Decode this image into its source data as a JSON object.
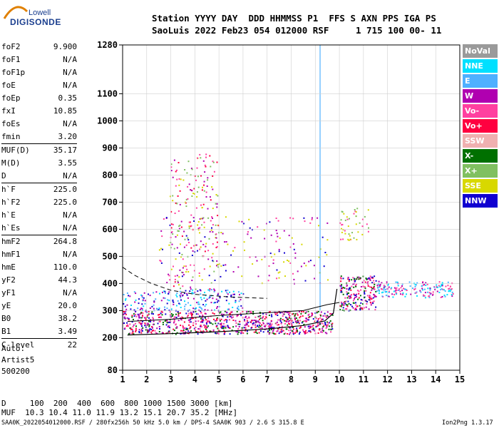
{
  "logo": {
    "line1": "Lowell",
    "line2": "DIGISONDE"
  },
  "header": {
    "line1": "Station YYYY DAY  DDD HHMMSS P1  FFS S AXN PPS IGA PS",
    "line2": "SaoLuis 2022 Feb23 054 012000 RSF     1 715 100 00- 11"
  },
  "params": [
    {
      "label": "foF2",
      "value": "9.900"
    },
    {
      "label": "foF1",
      "value": "N/A"
    },
    {
      "label": "foF1p",
      "value": "N/A"
    },
    {
      "label": "foE",
      "value": "N/A"
    },
    {
      "label": "foEp",
      "value": "0.35"
    },
    {
      "label": "fxI",
      "value": "10.85"
    },
    {
      "label": "foEs",
      "value": "N/A"
    },
    {
      "label": "fmin",
      "value": "3.20"
    },
    {
      "label": "MUF(D)",
      "value": "35.17"
    },
    {
      "label": "M(D)",
      "value": "3.55"
    },
    {
      "label": "D",
      "value": "N/A"
    },
    {
      "label": "h`F",
      "value": "225.0"
    },
    {
      "label": "h`F2",
      "value": "225.0"
    },
    {
      "label": "h`E",
      "value": "N/A"
    },
    {
      "label": "h`Es",
      "value": "N/A"
    },
    {
      "label": "hmF2",
      "value": "264.8"
    },
    {
      "label": "hmF1",
      "value": "N/A"
    },
    {
      "label": "hmE",
      "value": "110.0"
    },
    {
      "label": "yF2",
      "value": "44.3"
    },
    {
      "label": "yF1",
      "value": "N/A"
    },
    {
      "label": "yE",
      "value": "20.0"
    },
    {
      "label": "B0",
      "value": "38.2"
    },
    {
      "label": "B1",
      "value": "3.49"
    },
    {
      "label": "C-level",
      "value": "22"
    }
  ],
  "auto": {
    "line1": "Auto:",
    "line2": "Artist5",
    "line3": "500200"
  },
  "footer": {
    "d_row": "D     100  200  400  600  800 1000 1500 3000 [km]",
    "muf_row": "MUF  10.3 10.4 11.0 11.9 13.2 15.1 20.7 35.2 [MHz]",
    "file_info": "SAA0K_2022054012000.RSF / 280fx256h 50 kHz 5.0 km / DPS-4 SAA0K 903 / 2.6 S 315.8 E",
    "version": "Ion2Png 1.3.17"
  },
  "legend": [
    {
      "label": "NoVal",
      "color": "#9a9a9a"
    },
    {
      "label": "NNE",
      "color": "#00e0ff"
    },
    {
      "label": "E",
      "color": "#4fb0ff"
    },
    {
      "label": "W",
      "color": "#b000b0"
    },
    {
      "label": "Vo-",
      "color": "#ff40a0"
    },
    {
      "label": "Vo+",
      "color": "#ff0040"
    },
    {
      "label": "SSW",
      "color": "#f0b0b0"
    },
    {
      "label": "X-",
      "color": "#007000"
    },
    {
      "label": "X+",
      "color": "#80c060"
    },
    {
      "label": "SSE",
      "color": "#d8d800"
    },
    {
      "label": "NNW",
      "color": "#1000d0"
    }
  ],
  "chart_data": {
    "type": "scatter",
    "xlim": [
      1,
      15
    ],
    "ylim": [
      80,
      1280
    ],
    "x_ticks": [
      "1",
      "2",
      "3",
      "4",
      "5",
      "6",
      "7",
      "8",
      "9",
      "10",
      "11",
      "12",
      "13",
      "14",
      "15"
    ],
    "y_ticks": [
      {
        "label": "80",
        "value": 80
      },
      {
        "label": "200",
        "value": 200
      },
      {
        "label": "300",
        "value": 300
      },
      {
        "label": "400",
        "value": 400
      },
      {
        "label": "500",
        "value": 500
      },
      {
        "label": "600",
        "value": 600
      },
      {
        "label": "700",
        "value": 700
      },
      {
        "label": "800",
        "value": 800
      },
      {
        "label": "900",
        "value": 900
      },
      {
        "label": "1000",
        "value": 1000
      },
      {
        "label": "1100",
        "value": 1100
      },
      {
        "label": "1280",
        "value": 1280
      }
    ],
    "grid": true,
    "profile_curve": [
      [
        1.2,
        210
      ],
      [
        3,
        215
      ],
      [
        5,
        222
      ],
      [
        7,
        232
      ],
      [
        8.5,
        245
      ],
      [
        9.4,
        262
      ],
      [
        9.75,
        290
      ],
      [
        9.9,
        380
      ]
    ],
    "trace_line": [
      [
        1.2,
        260
      ],
      [
        3,
        268
      ],
      [
        5,
        282
      ],
      [
        7,
        292
      ],
      [
        8.5,
        300
      ],
      [
        9.5,
        322
      ],
      [
        10,
        330
      ]
    ],
    "dashed_line": [
      [
        1,
        460
      ],
      [
        1.5,
        430
      ],
      [
        2.2,
        400
      ],
      [
        3,
        375
      ],
      [
        4,
        360
      ],
      [
        5.5,
        350
      ],
      [
        7,
        345
      ]
    ],
    "clusters": [
      {
        "x": [
          1.0,
          9.7
        ],
        "y": [
          215,
          300
        ],
        "density": 0.9,
        "colors": [
          "#ff0040",
          "#1000d0",
          "#b000b0",
          "#007000",
          "#ff40a0"
        ]
      },
      {
        "x": [
          1.0,
          6.0
        ],
        "y": [
          300,
          380
        ],
        "density": 0.4,
        "colors": [
          "#1000d0",
          "#00e0ff",
          "#4fb0ff",
          "#b000b0"
        ]
      },
      {
        "x": [
          2.9,
          5.0
        ],
        "y": [
          380,
          880
        ],
        "density": 0.15,
        "colors": [
          "#b000b0",
          "#ff40a0",
          "#ff0040",
          "#d8d800",
          "#80c060"
        ]
      },
      {
        "x": [
          2.5,
          9.5
        ],
        "y": [
          400,
          650
        ],
        "density": 0.08,
        "colors": [
          "#b000b0",
          "#ff40a0",
          "#1000d0",
          "#d8d800"
        ]
      },
      {
        "x": [
          10.0,
          11.5
        ],
        "y": [
          300,
          430
        ],
        "density": 0.85,
        "colors": [
          "#ff0040",
          "#b000b0",
          "#007000",
          "#ff40a0",
          "#1000d0"
        ]
      },
      {
        "x": [
          11.5,
          14.7
        ],
        "y": [
          350,
          410
        ],
        "density": 0.7,
        "colors": [
          "#00e0ff",
          "#4fb0ff",
          "#b000b0",
          "#ff40a0"
        ]
      },
      {
        "x": [
          10.0,
          11.2
        ],
        "y": [
          560,
          680
        ],
        "density": 0.25,
        "colors": [
          "#d8d800",
          "#ff40a0",
          "#80c060"
        ]
      }
    ],
    "vertical_streak": {
      "x": 9.2,
      "y": [
        300,
        1280
      ]
    }
  }
}
